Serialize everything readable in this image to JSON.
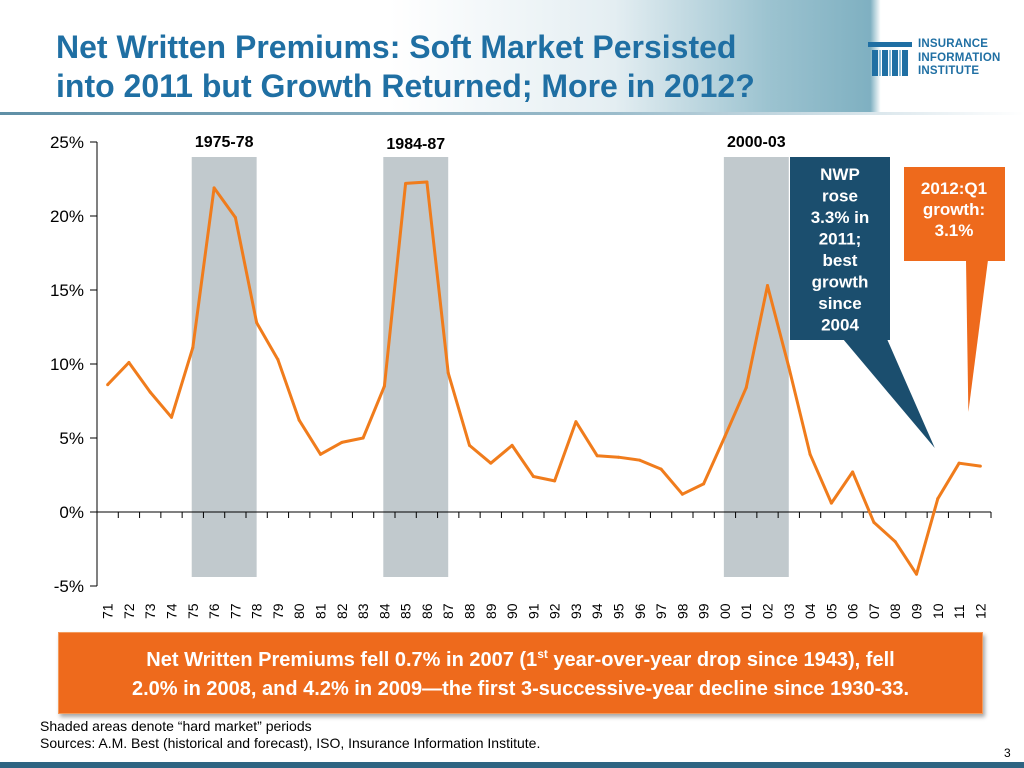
{
  "slide": {
    "title_line1": "Net Written Premiums: Soft Market Persisted",
    "title_line2": "into 2011 but Growth Returned; More in 2012?",
    "logo": {
      "line1": "INSURANCE",
      "line2": "INFORMATION",
      "line3": "INSTITUTE"
    },
    "callout_orange": {
      "part1": "Net Written Premiums fell 0.7% in 2007 (1",
      "sup": "st",
      "part2": " year-over-year drop since 1943), fell",
      "line2": "2.0% in 2008, and 4.2% in 2009—the first 3-successive-year decline since 1930-33."
    },
    "footnote_line1": "Shaded areas denote “hard market” periods",
    "footnote_line2": "Sources:  A.M. Best (historical and forecast), ISO, Insurance Information Institute.",
    "page_number": "3"
  },
  "chart_data": {
    "type": "line",
    "title": "",
    "xlabel": "",
    "ylabel": "",
    "ylim": [
      -5,
      25
    ],
    "yticks": [
      "-5%",
      "0%",
      "5%",
      "10%",
      "15%",
      "20%",
      "25%"
    ],
    "ytick_values": [
      -5,
      0,
      5,
      10,
      15,
      20,
      25
    ],
    "categories": [
      "71",
      "72",
      "73",
      "74",
      "75",
      "76",
      "77",
      "78",
      "79",
      "80",
      "81",
      "82",
      "83",
      "84",
      "85",
      "86",
      "87",
      "88",
      "89",
      "90",
      "91",
      "92",
      "93",
      "94",
      "95",
      "96",
      "97",
      "98",
      "99",
      "00",
      "01",
      "02",
      "03",
      "04",
      "05",
      "06",
      "07",
      "08",
      "09",
      "10",
      "11",
      "12"
    ],
    "series": [
      {
        "name": "Net Written Premium Growth",
        "color": "#f07c1c",
        "values": [
          8.6,
          10.1,
          8.1,
          6.4,
          11.1,
          21.9,
          19.9,
          12.8,
          10.3,
          6.2,
          3.9,
          4.7,
          5.0,
          8.5,
          22.2,
          22.3,
          9.4,
          4.5,
          3.3,
          4.5,
          2.4,
          2.1,
          6.1,
          3.8,
          3.7,
          3.5,
          2.9,
          1.2,
          1.9,
          5.1,
          8.4,
          15.3,
          9.8,
          3.9,
          0.6,
          2.7,
          -0.7,
          -2.0,
          -4.2,
          0.9,
          3.3,
          3.1
        ]
      }
    ],
    "shaded_periods": [
      {
        "label": "1975-78",
        "start": "75",
        "end": "78"
      },
      {
        "label": "1984-87",
        "start": "84",
        "end": "87"
      },
      {
        "label": "2000-03",
        "start": "00",
        "end": "03"
      }
    ],
    "annotations": [
      {
        "name": "nwp-2011",
        "lines": [
          "NWP",
          "rose",
          "3.3% in",
          "2011;",
          "best",
          "growth",
          "since",
          "2004"
        ],
        "fill": "#1b4e6e"
      },
      {
        "name": "q1-2012",
        "lines": [
          "2012:Q1",
          "growth:",
          "3.1%"
        ],
        "fill": "#ee6a1c"
      }
    ]
  }
}
